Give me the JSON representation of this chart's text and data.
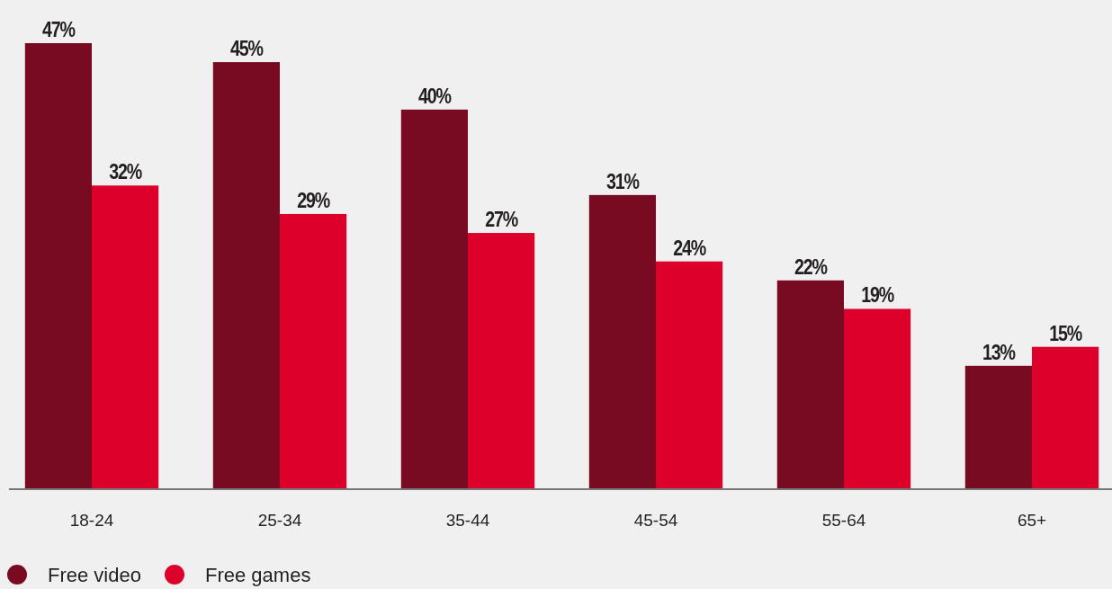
{
  "chart_data": {
    "type": "bar",
    "categories": [
      "18-24",
      "25-34",
      "35-44",
      "45-54",
      "55-64",
      "65+"
    ],
    "series": [
      {
        "name": "Free video",
        "color": "#780a21",
        "values": [
          47,
          45,
          40,
          31,
          22,
          13
        ],
        "value_labels": [
          "47%",
          "45%",
          "40%",
          "31%",
          "22%",
          "13%"
        ]
      },
      {
        "name": "Free games",
        "color": "#dc002b",
        "values": [
          32,
          29,
          27,
          24,
          19,
          15
        ],
        "value_labels": [
          "32%",
          "29%",
          "27%",
          "24%",
          "19%",
          "15%"
        ]
      }
    ],
    "legend": "bottom"
  }
}
